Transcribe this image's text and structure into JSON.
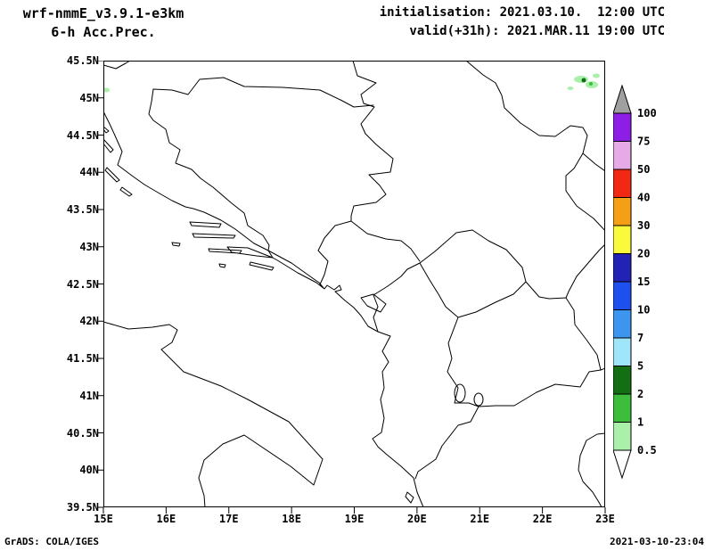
{
  "header": {
    "model_line": "wrf-nmmE_v3.9.1-e3km",
    "product_line": "6-h Acc.Prec.",
    "init_line": "initialisation: 2021.03.10.  12:00 UTC",
    "valid_line": "valid(+31h): 2021.MAR.11 19:00 UTC"
  },
  "map": {
    "axes": {
      "lat_ticks": [
        "45.5N",
        "45N",
        "44.5N",
        "44N",
        "43.5N",
        "43N",
        "42.5N",
        "42N",
        "41.5N",
        "41N",
        "40.5N",
        "40N",
        "39.5N"
      ],
      "lon_ticks": [
        "15E",
        "16E",
        "17E",
        "18E",
        "19E",
        "20E",
        "21E",
        "22E",
        "23E"
      ]
    },
    "precip_specks": [
      {
        "near_lon": "22.5E",
        "near_lat": "45.2N",
        "category": "0.5-1"
      },
      {
        "near_lon": "22.55E",
        "near_lat": "45.2N",
        "category": "2-5"
      },
      {
        "near_lon": "22.6E",
        "near_lat": "45.15N",
        "category": "1-2"
      },
      {
        "near_lon": "15.05E",
        "near_lat": "45.1N",
        "category": "0.5-1"
      }
    ]
  },
  "colorbar": {
    "levels_top_to_bottom": [
      "100",
      "75",
      "50",
      "40",
      "30",
      "20",
      "15",
      "10",
      "7",
      "5",
      "2",
      "1",
      "0.5"
    ],
    "colors_top_to_bottom": [
      "#a0a0a0",
      "#8c1ee6",
      "#e6aae6",
      "#f02814",
      "#f5a014",
      "#fafa3c",
      "#2222b4",
      "#1e50f0",
      "#3c96f0",
      "#a0e6fa",
      "#146e14",
      "#3cbe3c",
      "#aaf0aa",
      "#ffffff"
    ]
  },
  "footer": {
    "credit": "GrADS: COLA/IGES",
    "timestamp": "2021-03-10-23:04"
  }
}
